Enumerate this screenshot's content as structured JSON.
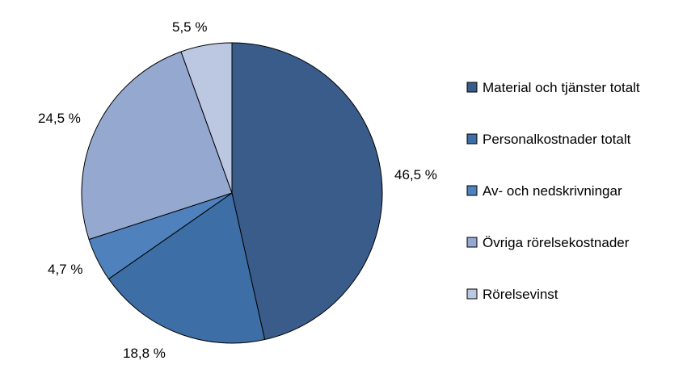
{
  "chart_data": {
    "type": "pie",
    "title": "",
    "categories": [
      "Material och tjänster totalt",
      "Personalkostnader totalt",
      "Av- och nedskrivningar",
      "Övriga rörelsekostnader",
      "Rörelsevinst"
    ],
    "values": [
      46.5,
      18.8,
      4.7,
      24.5,
      5.5
    ],
    "value_labels": [
      "46,5 %",
      "18,8 %",
      "4,7 %",
      "24,5 %",
      "5,5 %"
    ],
    "colors": [
      "#3a5c8a",
      "#3e6ea6",
      "#4f81bd",
      "#95a9d0",
      "#bcc8e2"
    ],
    "start_angle": "12 o'clock",
    "direction": "clockwise",
    "legend_position": "right"
  }
}
